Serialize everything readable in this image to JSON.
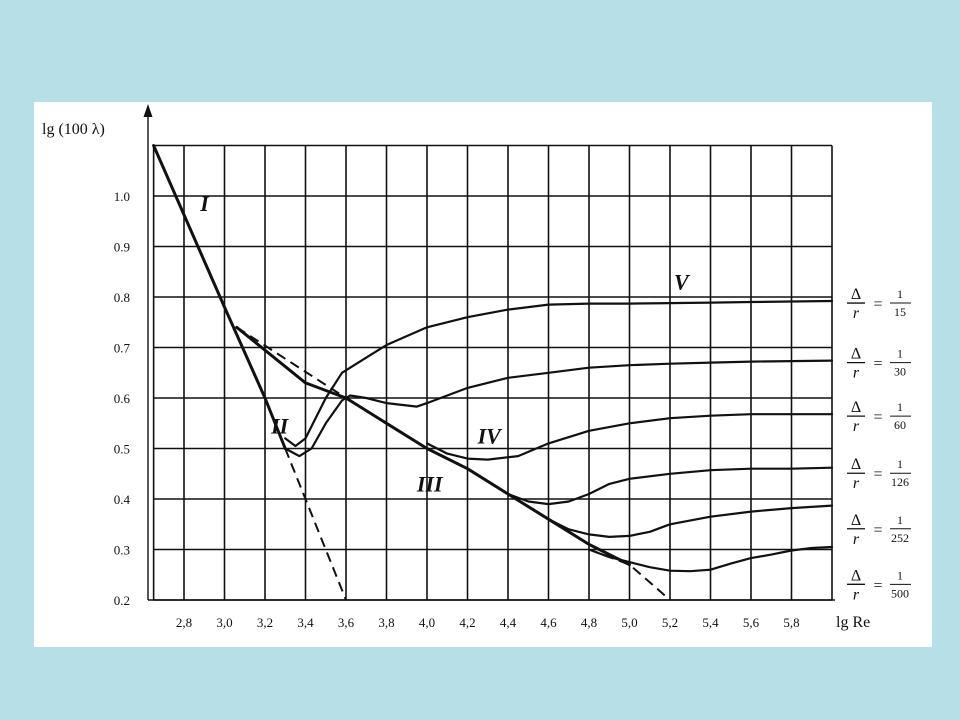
{
  "colors": {
    "page_background": "#b7dfe8",
    "panel": "#ffffff",
    "ink": "#111111"
  },
  "chart_data": {
    "type": "line",
    "title": "",
    "xlabel": "lg Re",
    "ylabel": "lg (100 λ)",
    "xlim": [
      2.6,
      6.0
    ],
    "ylim": [
      0.2,
      1.1
    ],
    "grid": true,
    "x_ticks": [
      {
        "v": 2.8,
        "label": "2,8"
      },
      {
        "v": 3.0,
        "label": "3,0"
      },
      {
        "v": 3.2,
        "label": "3,2"
      },
      {
        "v": 3.4,
        "label": "3,4"
      },
      {
        "v": 3.6,
        "label": "3,6"
      },
      {
        "v": 3.8,
        "label": "3,8"
      },
      {
        "v": 4.0,
        "label": "4,0"
      },
      {
        "v": 4.2,
        "label": "4,2"
      },
      {
        "v": 4.4,
        "label": "4,4"
      },
      {
        "v": 4.6,
        "label": "4,6"
      },
      {
        "v": 4.8,
        "label": "4,8"
      },
      {
        "v": 5.0,
        "label": "5,0"
      },
      {
        "v": 5.2,
        "label": "5,2"
      },
      {
        "v": 5.4,
        "label": "5,4"
      },
      {
        "v": 5.6,
        "label": "5,6"
      },
      {
        "v": 5.8,
        "label": "5,8"
      }
    ],
    "y_ticks": [
      {
        "v": 0.2,
        "label": "0.2"
      },
      {
        "v": 0.3,
        "label": "0.3"
      },
      {
        "v": 0.4,
        "label": "0.4"
      },
      {
        "v": 0.5,
        "label": "0.5"
      },
      {
        "v": 0.6,
        "label": "0.6"
      },
      {
        "v": 0.7,
        "label": "0.7"
      },
      {
        "v": 0.8,
        "label": "0.8"
      },
      {
        "v": 0.9,
        "label": "0.9"
      },
      {
        "v": 1.0,
        "label": "1.0"
      }
    ],
    "x_grid": [
      2.65,
      2.8,
      3.0,
      3.2,
      3.4,
      3.6,
      3.8,
      4.0,
      4.2,
      4.4,
      4.6,
      4.8,
      5.0,
      5.2,
      5.4,
      5.6,
      5.8,
      6.0
    ],
    "y_grid": [
      0.2,
      0.3,
      0.4,
      0.5,
      0.6,
      0.7,
      0.8,
      0.9,
      1.0,
      1.1
    ],
    "series": [
      {
        "style": "thick",
        "points": [
          [
            2.65,
            1.1
          ],
          [
            3.0,
            0.78
          ],
          [
            3.2,
            0.6
          ],
          [
            3.3,
            0.5
          ]
        ]
      },
      {
        "style": "thick",
        "points": [
          [
            3.06,
            0.74
          ],
          [
            3.4,
            0.63
          ],
          [
            3.6,
            0.6
          ],
          [
            3.8,
            0.55
          ],
          [
            4.0,
            0.5
          ],
          [
            4.2,
            0.46
          ],
          [
            4.4,
            0.41
          ],
          [
            4.6,
            0.36
          ],
          [
            4.8,
            0.31
          ],
          [
            5.0,
            0.27
          ]
        ]
      },
      {
        "style": "dashed",
        "points": [
          [
            3.06,
            0.74
          ],
          [
            3.6,
            0.6
          ]
        ]
      },
      {
        "style": "dashed",
        "points": [
          [
            3.3,
            0.5
          ],
          [
            3.6,
            0.2
          ]
        ]
      },
      {
        "style": "dashed",
        "points": [
          [
            4.8,
            0.3
          ],
          [
            5.0,
            0.27
          ],
          [
            5.2,
            0.2
          ]
        ]
      },
      {
        "label": "Δ/r = 1/15",
        "points": [
          [
            3.3,
            0.52
          ],
          [
            3.35,
            0.505
          ],
          [
            3.4,
            0.52
          ],
          [
            3.45,
            0.56
          ],
          [
            3.5,
            0.6
          ],
          [
            3.58,
            0.65
          ],
          [
            3.7,
            0.68
          ],
          [
            3.8,
            0.705
          ],
          [
            4.0,
            0.74
          ],
          [
            4.2,
            0.76
          ],
          [
            4.4,
            0.775
          ],
          [
            4.6,
            0.785
          ],
          [
            4.8,
            0.787
          ],
          [
            5.0,
            0.787
          ],
          [
            5.2,
            0.788
          ],
          [
            5.4,
            0.789
          ],
          [
            5.6,
            0.79
          ],
          [
            5.8,
            0.791
          ],
          [
            6.0,
            0.792
          ]
        ]
      },
      {
        "label": "Δ/r = 1/30",
        "points": [
          [
            3.3,
            0.5
          ],
          [
            3.37,
            0.485
          ],
          [
            3.43,
            0.5
          ],
          [
            3.5,
            0.55
          ],
          [
            3.58,
            0.595
          ],
          [
            3.62,
            0.605
          ],
          [
            3.7,
            0.6
          ],
          [
            3.8,
            0.59
          ],
          [
            3.95,
            0.583
          ],
          [
            4.0,
            0.59
          ],
          [
            4.2,
            0.62
          ],
          [
            4.4,
            0.64
          ],
          [
            4.6,
            0.65
          ],
          [
            4.8,
            0.66
          ],
          [
            5.0,
            0.665
          ],
          [
            5.2,
            0.668
          ],
          [
            5.4,
            0.67
          ],
          [
            5.6,
            0.672
          ],
          [
            5.8,
            0.673
          ],
          [
            6.0,
            0.674
          ]
        ]
      },
      {
        "label": "Δ/r = 1/60",
        "points": [
          [
            4.0,
            0.51
          ],
          [
            4.1,
            0.49
          ],
          [
            4.2,
            0.48
          ],
          [
            4.3,
            0.478
          ],
          [
            4.45,
            0.485
          ],
          [
            4.6,
            0.51
          ],
          [
            4.8,
            0.535
          ],
          [
            5.0,
            0.55
          ],
          [
            5.2,
            0.56
          ],
          [
            5.4,
            0.565
          ],
          [
            5.6,
            0.568
          ],
          [
            5.8,
            0.568
          ],
          [
            6.0,
            0.568
          ]
        ]
      },
      {
        "label": "Δ/r = 1/126",
        "points": [
          [
            4.4,
            0.41
          ],
          [
            4.5,
            0.395
          ],
          [
            4.6,
            0.39
          ],
          [
            4.7,
            0.395
          ],
          [
            4.8,
            0.41
          ],
          [
            4.9,
            0.43
          ],
          [
            5.0,
            0.44
          ],
          [
            5.2,
            0.45
          ],
          [
            5.4,
            0.457
          ],
          [
            5.6,
            0.46
          ],
          [
            5.8,
            0.46
          ],
          [
            6.0,
            0.462
          ]
        ]
      },
      {
        "label": "Δ/r = 1/252",
        "points": [
          [
            4.6,
            0.36
          ],
          [
            4.7,
            0.34
          ],
          [
            4.8,
            0.33
          ],
          [
            4.9,
            0.325
          ],
          [
            5.0,
            0.327
          ],
          [
            5.1,
            0.335
          ],
          [
            5.2,
            0.35
          ],
          [
            5.4,
            0.365
          ],
          [
            5.6,
            0.375
          ],
          [
            5.8,
            0.382
          ],
          [
            6.0,
            0.387
          ]
        ]
      },
      {
        "label": "Δ/r = 1/500",
        "points": [
          [
            4.8,
            0.3
          ],
          [
            4.9,
            0.285
          ],
          [
            5.0,
            0.275
          ],
          [
            5.1,
            0.265
          ],
          [
            5.2,
            0.258
          ],
          [
            5.3,
            0.257
          ],
          [
            5.4,
            0.26
          ],
          [
            5.5,
            0.272
          ],
          [
            5.6,
            0.283
          ],
          [
            5.7,
            0.29
          ],
          [
            5.8,
            0.298
          ],
          [
            5.9,
            0.303
          ],
          [
            6.0,
            0.305
          ]
        ]
      }
    ],
    "annotations": [
      {
        "text": "I",
        "x": 2.88,
        "y": 0.97
      },
      {
        "text": "II",
        "x": 3.23,
        "y": 0.53
      },
      {
        "text": "III",
        "x": 3.95,
        "y": 0.415
      },
      {
        "text": "IV",
        "x": 4.25,
        "y": 0.51
      },
      {
        "text": "V",
        "x": 5.22,
        "y": 0.815
      }
    ],
    "curve_labels": [
      {
        "symbol": "Δ",
        "var": "r",
        "eq": "=",
        "num": "1",
        "den": "15",
        "y": 0.792
      },
      {
        "symbol": "Δ",
        "var": "r",
        "eq": "=",
        "num": "1",
        "den": "30",
        "y": 0.674
      },
      {
        "symbol": "Δ",
        "var": "r",
        "eq": "=",
        "num": "1",
        "den": "60",
        "y": 0.568
      },
      {
        "symbol": "Δ",
        "var": "r",
        "eq": "=",
        "num": "1",
        "den": "126",
        "y": 0.455
      },
      {
        "symbol": "Δ",
        "var": "r",
        "eq": "=",
        "num": "1",
        "den": "252",
        "y": 0.345
      },
      {
        "symbol": "Δ",
        "var": "r",
        "eq": "=",
        "num": "1",
        "den": "500",
        "y": 0.235
      }
    ]
  }
}
